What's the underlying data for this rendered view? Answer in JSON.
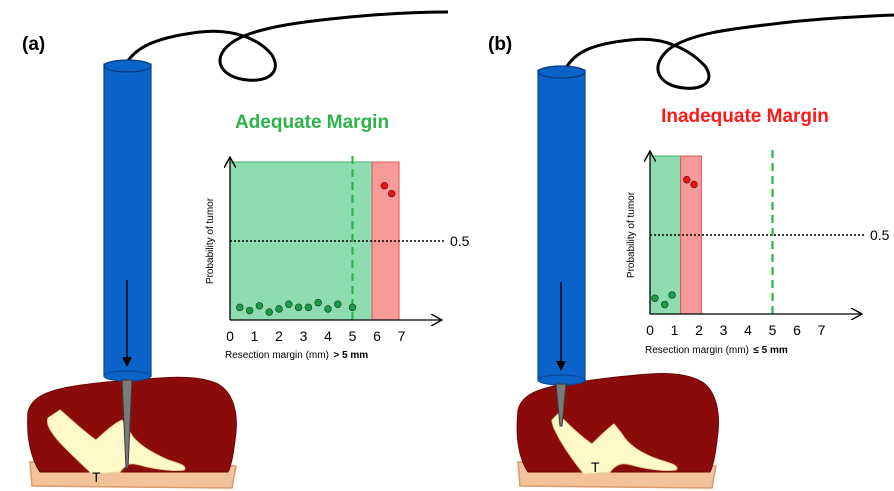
{
  "panels": [
    {
      "label": "(a)",
      "heading": "Adequate Margin",
      "heading_color": "#2db34a",
      "tumor_label": "T",
      "xaxis_label": "Resection margin (mm)",
      "xaxis_condition": "> 5 mm",
      "yaxis_label": "Probability of tumor",
      "reference_label": "0.5"
    },
    {
      "label": "(b)",
      "heading": "Inadequate Margin",
      "heading_color": "#ff1a1a",
      "tumor_label": "T",
      "xaxis_label": "Resection margin (mm)",
      "xaxis_condition": "≤ 5 mm",
      "yaxis_label": "Probability of tumor",
      "reference_label": "0.5"
    }
  ],
  "colors": {
    "probe": "#0a63c9",
    "probe_edge": "#084a99",
    "tissue": "#8b0a0a",
    "skin": "#f2c39a",
    "tumor": "#fff8c8",
    "healthy_zone": "#8fdcb0",
    "healthy_zone_edge": "#3bb36b",
    "tumor_zone": "#f79a9a",
    "tumor_zone_edge": "#e05a5a",
    "healthy_point": "#1e9a4a",
    "tumor_point": "#e01818",
    "threshold_line": "#2db34a"
  },
  "chart_data": [
    {
      "type": "scatter",
      "panel": "(a)",
      "x_ticks": [
        "0",
        "1",
        "2",
        "3",
        "4",
        "5",
        "6",
        "7"
      ],
      "xlim": [
        0,
        7
      ],
      "ylim": [
        0,
        1
      ],
      "threshold_mm": 5,
      "reference_probability": 0.5,
      "shaded_regions": [
        {
          "kind": "healthy",
          "x_range": [
            0,
            5.8
          ]
        },
        {
          "kind": "tumor",
          "x_range": [
            5.8,
            6.9
          ]
        }
      ],
      "series": [
        {
          "kind": "healthy",
          "points": [
            [
              0.4,
              0.08
            ],
            [
              0.8,
              0.06
            ],
            [
              1.2,
              0.09
            ],
            [
              1.6,
              0.05
            ],
            [
              2.0,
              0.07
            ],
            [
              2.4,
              0.1
            ],
            [
              2.8,
              0.08
            ],
            [
              3.2,
              0.08
            ],
            [
              3.6,
              0.11
            ],
            [
              4.0,
              0.07
            ],
            [
              4.4,
              0.1
            ],
            [
              5.0,
              0.08
            ]
          ]
        },
        {
          "kind": "tumor",
          "points": [
            [
              6.3,
              0.85
            ],
            [
              6.6,
              0.8
            ]
          ]
        }
      ]
    },
    {
      "type": "scatter",
      "panel": "(b)",
      "x_ticks": [
        "0",
        "1",
        "2",
        "3",
        "4",
        "5",
        "6",
        "7"
      ],
      "xlim": [
        0,
        7
      ],
      "ylim": [
        0,
        1
      ],
      "threshold_mm": 5,
      "reference_probability": 0.5,
      "shaded_regions": [
        {
          "kind": "healthy",
          "x_range": [
            0,
            1.25
          ]
        },
        {
          "kind": "tumor",
          "x_range": [
            1.25,
            2.1
          ]
        }
      ],
      "series": [
        {
          "kind": "healthy",
          "points": [
            [
              0.2,
              0.1
            ],
            [
              0.6,
              0.06
            ],
            [
              0.9,
              0.12
            ]
          ]
        },
        {
          "kind": "tumor",
          "points": [
            [
              1.5,
              0.85
            ],
            [
              1.8,
              0.82
            ]
          ]
        }
      ]
    }
  ]
}
